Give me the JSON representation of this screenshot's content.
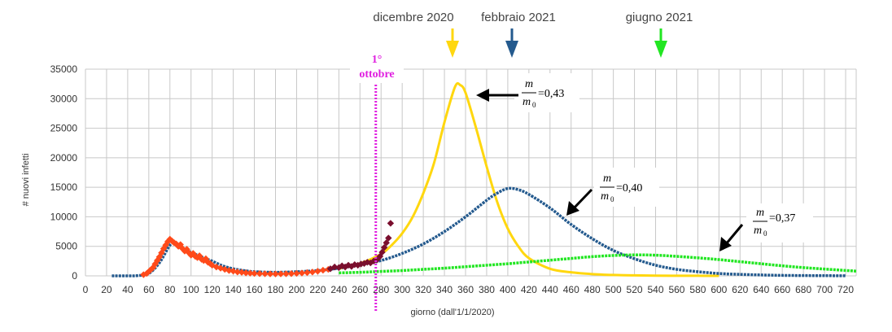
{
  "chart_data": {
    "type": "scatter",
    "xlabel": "giorno (dall'1/1/2020)",
    "ylabel": "# nuovi infetti",
    "xlim": [
      0,
      730
    ],
    "ylim": [
      0,
      35000
    ],
    "x_ticks": [
      0,
      20,
      40,
      60,
      80,
      100,
      120,
      140,
      160,
      180,
      200,
      220,
      240,
      260,
      280,
      300,
      320,
      340,
      360,
      380,
      400,
      420,
      440,
      460,
      480,
      500,
      520,
      540,
      560,
      580,
      600,
      620,
      640,
      660,
      680,
      700,
      720
    ],
    "y_ticks": [
      0,
      5000,
      10000,
      15000,
      20000,
      25000,
      30000,
      35000
    ],
    "grid": true,
    "series": [
      {
        "style": "line",
        "color": "#ffd70f",
        "x": [
          240,
          260,
          280,
          290,
          300,
          310,
          320,
          330,
          340,
          350,
          355,
          360,
          370,
          380,
          390,
          400,
          410,
          420,
          440,
          460,
          480,
          500,
          520,
          540,
          560,
          580,
          600
        ],
        "y": [
          1200,
          2100,
          3700,
          5200,
          7200,
          10000,
          14000,
          19000,
          26000,
          32000,
          32300,
          31000,
          25000,
          18500,
          12500,
          8000,
          5000,
          3000,
          1200,
          600,
          300,
          150,
          80,
          40,
          20,
          10,
          5
        ]
      },
      {
        "style": "line",
        "color": "#245a8e",
        "x": [
          25,
          40,
          50,
          60,
          70,
          80,
          85,
          90,
          100,
          110,
          120,
          130,
          140,
          150,
          160,
          180,
          200,
          220,
          240,
          260,
          280,
          300,
          320,
          340,
          360,
          380,
          390,
          400,
          410,
          420,
          440,
          460,
          480,
          500,
          520,
          540,
          560,
          580,
          600,
          620,
          640,
          660,
          680,
          700,
          720
        ],
        "y": [
          0,
          0,
          50,
          400,
          2200,
          5200,
          5700,
          4800,
          4000,
          3200,
          2500,
          1700,
          1200,
          900,
          700,
          600,
          700,
          900,
          1300,
          1900,
          2600,
          3800,
          5400,
          7500,
          10000,
          12800,
          14000,
          14800,
          14600,
          13800,
          11500,
          8700,
          6300,
          4300,
          2900,
          1800,
          1100,
          700,
          400,
          250,
          150,
          80,
          50,
          30,
          20
        ]
      },
      {
        "style": "line",
        "color": "#22e622",
        "x": [
          240,
          260,
          280,
          300,
          320,
          340,
          360,
          380,
          400,
          420,
          440,
          460,
          480,
          500,
          520,
          540,
          560,
          580,
          600,
          620,
          640,
          660,
          680,
          700,
          730
        ],
        "y": [
          500,
          600,
          750,
          900,
          1100,
          1300,
          1550,
          1800,
          2050,
          2350,
          2650,
          2950,
          3250,
          3450,
          3550,
          3500,
          3300,
          3050,
          2750,
          2400,
          2050,
          1700,
          1400,
          1150,
          800
        ]
      },
      {
        "style": "markers",
        "color": "#ff4a1a",
        "x": [
          55,
          58,
          61,
          64,
          66,
          68,
          70,
          72,
          74,
          76,
          78,
          80,
          82,
          84,
          86,
          88,
          90,
          92,
          94,
          96,
          98,
          100,
          102,
          104,
          106,
          108,
          110,
          112,
          114,
          116,
          118,
          120,
          124,
          128,
          132,
          136,
          140,
          144,
          148,
          152,
          156,
          160,
          165,
          170,
          175,
          180,
          185,
          190,
          195,
          200,
          205,
          210,
          215,
          220,
          225,
          230
        ],
        "y": [
          200,
          400,
          900,
          1400,
          2000,
          2600,
          3200,
          3900,
          4600,
          5200,
          5800,
          6200,
          5900,
          5600,
          5400,
          5000,
          5300,
          4600,
          4200,
          4500,
          3900,
          3500,
          3800,
          3300,
          3100,
          3400,
          2800,
          2600,
          2900,
          2300,
          2100,
          1800,
          1500,
          1300,
          1100,
          900,
          800,
          650,
          600,
          500,
          450,
          400,
          380,
          350,
          330,
          320,
          330,
          350,
          380,
          420,
          480,
          550,
          650,
          780,
          950,
          1100
        ]
      },
      {
        "style": "markers",
        "color": "#7a0f2e",
        "x": [
          232,
          236,
          240,
          243,
          246,
          249,
          252,
          255,
          258,
          261,
          264,
          267,
          270,
          273,
          276,
          279,
          281,
          283,
          285,
          287,
          289
        ],
        "y": [
          1200,
          1500,
          1400,
          1700,
          1500,
          1800,
          1600,
          1900,
          1800,
          2000,
          2100,
          2300,
          2200,
          2500,
          2700,
          3300,
          4000,
          4800,
          5600,
          6400,
          8900
        ]
      }
    ],
    "annotations": {
      "months": [
        {
          "label": "dicembre 2020",
          "x": 350,
          "color": "#ffd70f"
        },
        {
          "label": "febbraio 2021",
          "x": 400,
          "color": "#245a8e"
        },
        {
          "label": "giugno 2021",
          "x": 545,
          "color": "#22e622"
        }
      ],
      "start": {
        "line1": "1°",
        "line2": "ottobre",
        "x": 275,
        "color": "#e020e0"
      },
      "ratios": [
        {
          "value": "=0,43",
          "color": "#ffd70f"
        },
        {
          "value": "=0,40",
          "color": "#245a8e"
        },
        {
          "value": "=0,37",
          "color": "#22e622"
        }
      ],
      "ratio_num": "m",
      "ratio_den": "m",
      "ratio_sub": "0"
    }
  }
}
